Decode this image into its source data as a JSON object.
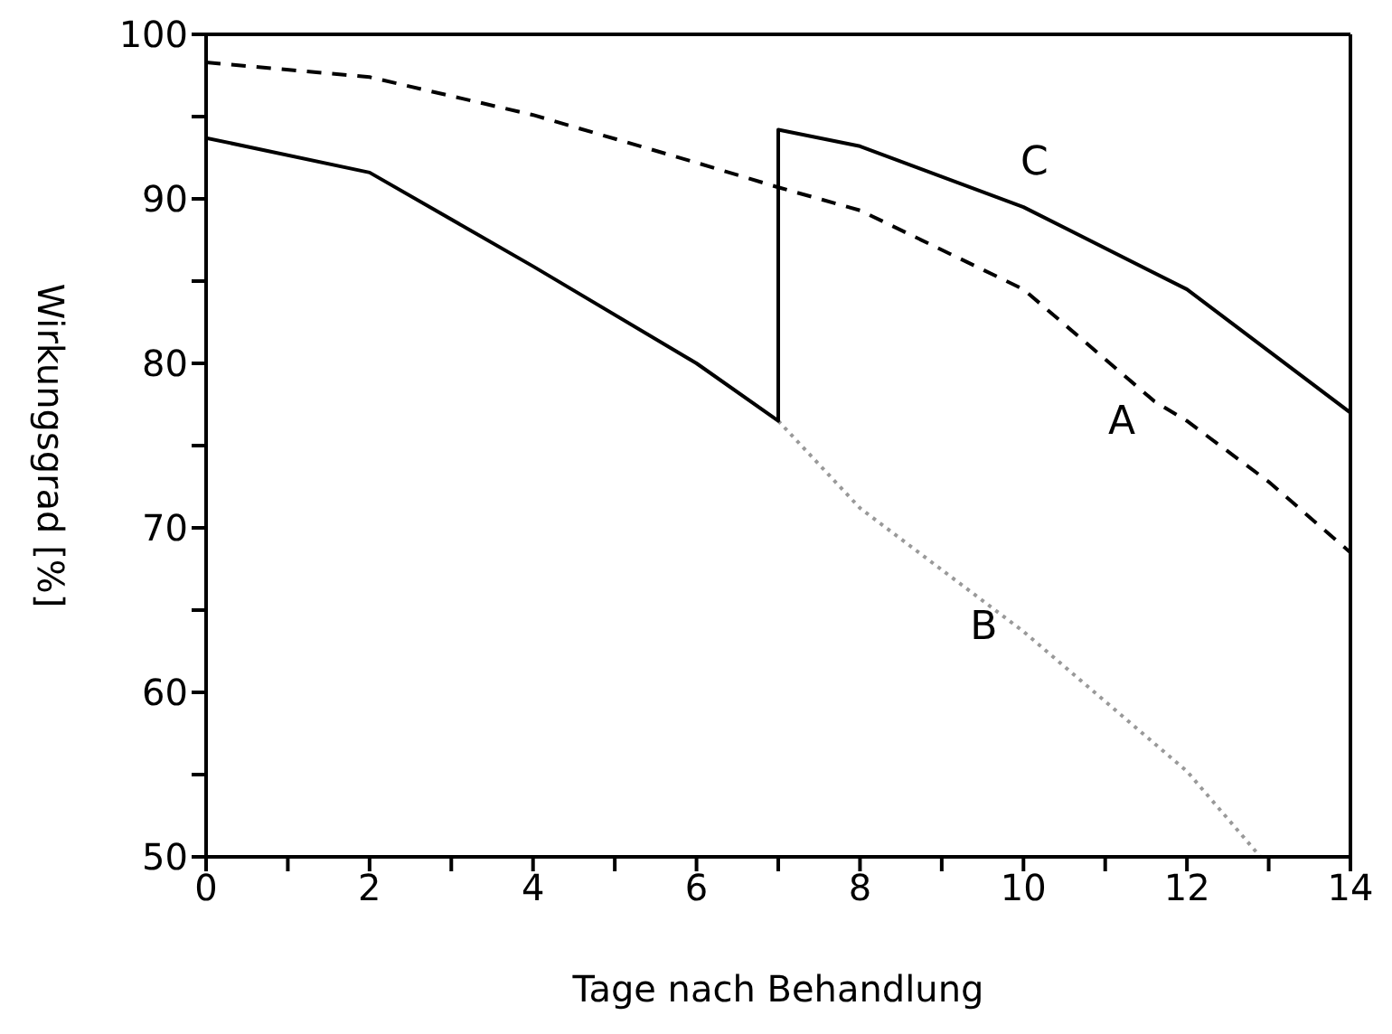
{
  "chart_data": {
    "type": "line",
    "xlabel": "Tage nach Behandlung",
    "ylabel": "Wirkungsgrad [%]",
    "xlim": [
      0,
      14
    ],
    "ylim": [
      50,
      100
    ],
    "xticks": [
      0,
      {
        "value": 1,
        "label": null
      },
      2,
      {
        "value": 3,
        "label": null
      },
      4,
      {
        "value": 5,
        "label": null
      },
      6,
      {
        "value": 7,
        "label": null
      },
      8,
      {
        "value": 9,
        "label": null
      },
      10,
      {
        "value": 11,
        "label": null
      },
      12,
      {
        "value": 13,
        "label": null
      },
      14
    ],
    "yticks": [
      50,
      {
        "value": 55,
        "label": null
      },
      60,
      {
        "value": 65,
        "label": null
      },
      70,
      {
        "value": 75,
        "label": null
      },
      80,
      {
        "value": 85,
        "label": null
      },
      90,
      {
        "value": 95,
        "label": null
      },
      100
    ],
    "marker": "none",
    "series": [
      {
        "name": "A",
        "color": "#000000",
        "line_style": "dashed",
        "x": [
          0,
          2,
          4,
          6,
          7,
          8,
          10,
          11.6,
          12,
          13,
          14
        ],
        "values": [
          98.3,
          97.4,
          95.1,
          92.2,
          90.7,
          89.3,
          84.5,
          77.7,
          76.5,
          72.8,
          68.5
        ]
      },
      {
        "name": "B",
        "color": "#999999",
        "line_style": "dotted",
        "x": [
          7,
          8,
          10,
          12,
          12.9
        ],
        "values": [
          76.5,
          71.2,
          63.7,
          55.2,
          50
        ]
      },
      {
        "name": "C",
        "color": "#000000",
        "line_style": "solid",
        "x": [
          0,
          2,
          4,
          6,
          7,
          7,
          8,
          10,
          12,
          14
        ],
        "values": [
          93.7,
          91.6,
          85.9,
          80.0,
          76.5,
          94.2,
          93.2,
          89.5,
          84.5,
          77.0
        ]
      }
    ]
  }
}
